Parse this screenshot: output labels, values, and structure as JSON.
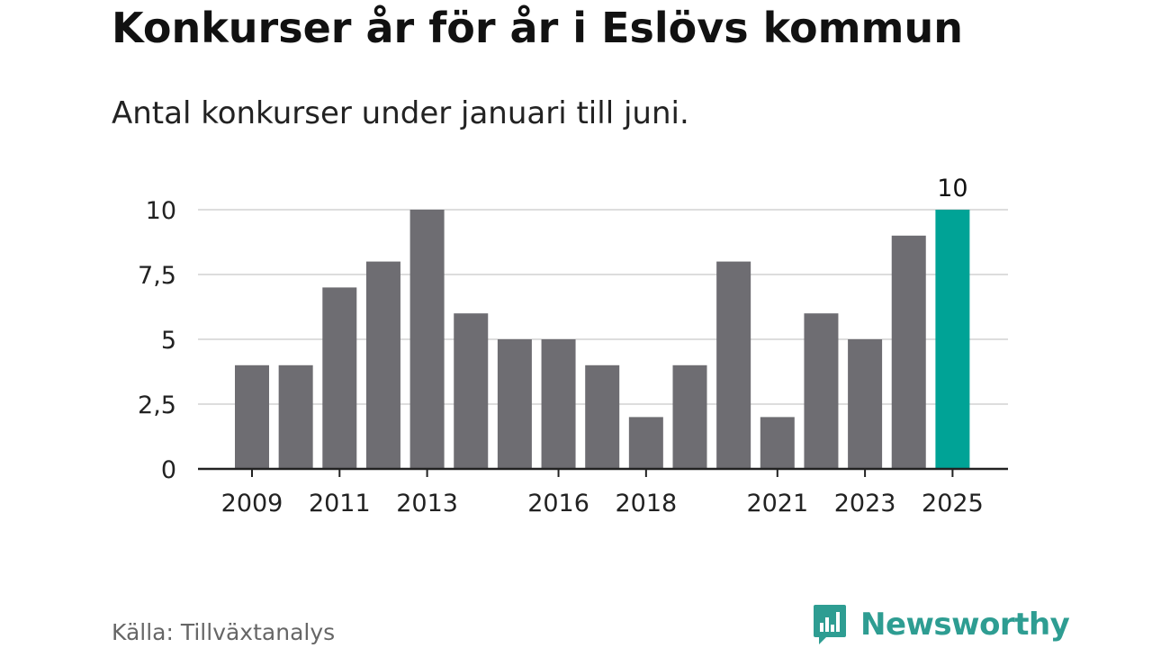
{
  "title": "Konkurser år för år i Eslövs kommun",
  "subtitle": "Antal konkurser under januari till juni.",
  "source": "Källa: Tillväxtanalys",
  "brand": {
    "name": "Newsworthy",
    "icon": "newsworthy-logo-icon",
    "color": "#2e9d92"
  },
  "colors": {
    "bar": "#6e6d72",
    "highlight": "#00a396",
    "grid": "#dddddd",
    "axis": "#222222"
  },
  "chart_data": {
    "type": "bar",
    "categories": [
      "2009",
      "2010",
      "2011",
      "2012",
      "2013",
      "2014",
      "2015",
      "2016",
      "2017",
      "2018",
      "2019",
      "2020",
      "2021",
      "2022",
      "2023",
      "2024",
      "2025"
    ],
    "values": [
      4,
      4,
      7,
      8,
      10,
      6,
      5,
      5,
      4,
      2,
      4,
      8,
      2,
      6,
      5,
      9,
      10
    ],
    "highlight_index": 16,
    "highlight_label": "10",
    "x_tick_labels": [
      "2009",
      "2011",
      "2013",
      "2016",
      "2018",
      "2021",
      "2023",
      "2025"
    ],
    "y_ticks": [
      {
        "value": 0,
        "label": "0"
      },
      {
        "value": 2.5,
        "label": "2,5"
      },
      {
        "value": 5,
        "label": "5"
      },
      {
        "value": 7.5,
        "label": "7,5"
      },
      {
        "value": 10,
        "label": "10"
      }
    ],
    "ylim": [
      0,
      10
    ],
    "grid": true
  }
}
